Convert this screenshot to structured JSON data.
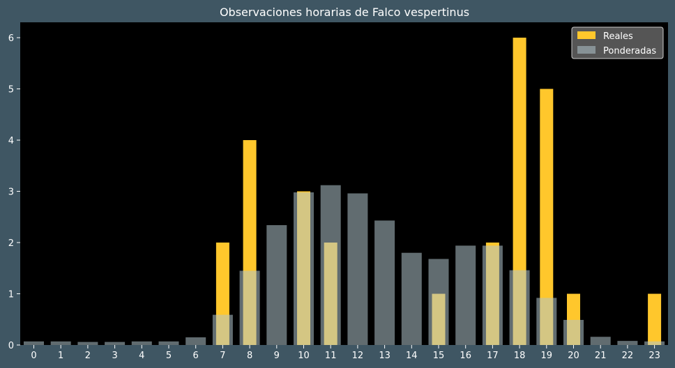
{
  "chart_data": {
    "type": "bar",
    "title": "Observaciones horarias de Falco vespertinus",
    "xlabel": "",
    "ylabel": "",
    "categories": [
      "0",
      "1",
      "2",
      "3",
      "4",
      "5",
      "6",
      "7",
      "8",
      "9",
      "10",
      "11",
      "12",
      "13",
      "14",
      "15",
      "16",
      "17",
      "18",
      "19",
      "20",
      "21",
      "22",
      "23"
    ],
    "ylim": [
      0,
      6.3
    ],
    "yticks": [
      0,
      1,
      2,
      3,
      4,
      5,
      6
    ],
    "grid": false,
    "legend_position": "top-right",
    "series": [
      {
        "name": "Reales",
        "color": "#ffc72c",
        "values": [
          0,
          0,
          0,
          0,
          0,
          0,
          0,
          2,
          4,
          0,
          3,
          2,
          0,
          0,
          0,
          1,
          0,
          2,
          6,
          5,
          1,
          0,
          0,
          1
        ]
      },
      {
        "name": "Ponderadas",
        "color": "#b0c4cc",
        "values": [
          0.07,
          0.07,
          0.06,
          0.06,
          0.07,
          0.07,
          0.15,
          0.59,
          1.45,
          2.34,
          2.98,
          3.12,
          2.96,
          2.43,
          1.8,
          1.68,
          1.94,
          1.94,
          1.46,
          0.92,
          0.49,
          0.16,
          0.08,
          0.07
        ]
      }
    ]
  }
}
